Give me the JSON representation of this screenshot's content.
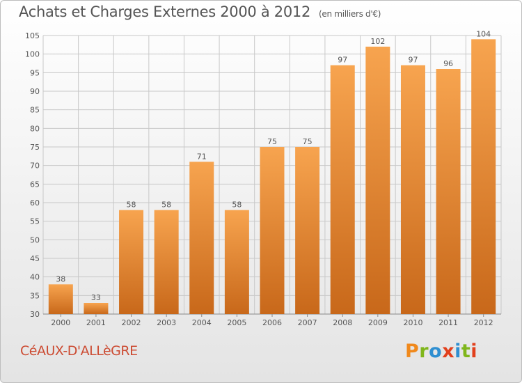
{
  "header": {
    "title": "Achats et Charges Externes 2000 à 2012",
    "subtitle": "(en milliers d'€)"
  },
  "footer": {
    "commune": "CéAUX-D'ALLèGRE",
    "logo_text": "Proxiti",
    "logo_colors": [
      "#f0891c",
      "#7fb61b",
      "#2f8fd1",
      "#e2401d",
      "#2f8fd1",
      "#7fb61b",
      "#e2401d"
    ]
  },
  "colors": {
    "bar_top": "#f7a44f",
    "bar_bottom": "#c8681a",
    "grid": "#c8c8c8",
    "text": "#555555"
  },
  "chart_data": {
    "type": "bar",
    "title": "Achats et Charges Externes 2000 à 2012",
    "subtitle": "(en milliers d'€)",
    "categories": [
      "2000",
      "2001",
      "2002",
      "2003",
      "2004",
      "2005",
      "2006",
      "2007",
      "2008",
      "2009",
      "2010",
      "2011",
      "2012"
    ],
    "values": [
      38,
      33,
      58,
      58,
      71,
      58,
      75,
      75,
      97,
      102,
      97,
      96,
      104
    ],
    "ylim": [
      30,
      105
    ],
    "yticks": [
      30,
      35,
      40,
      45,
      50,
      55,
      60,
      65,
      70,
      75,
      80,
      85,
      90,
      95,
      100,
      105
    ],
    "xlabel": "",
    "ylabel": "",
    "grid": true,
    "legend": "none",
    "data_labels": true
  }
}
